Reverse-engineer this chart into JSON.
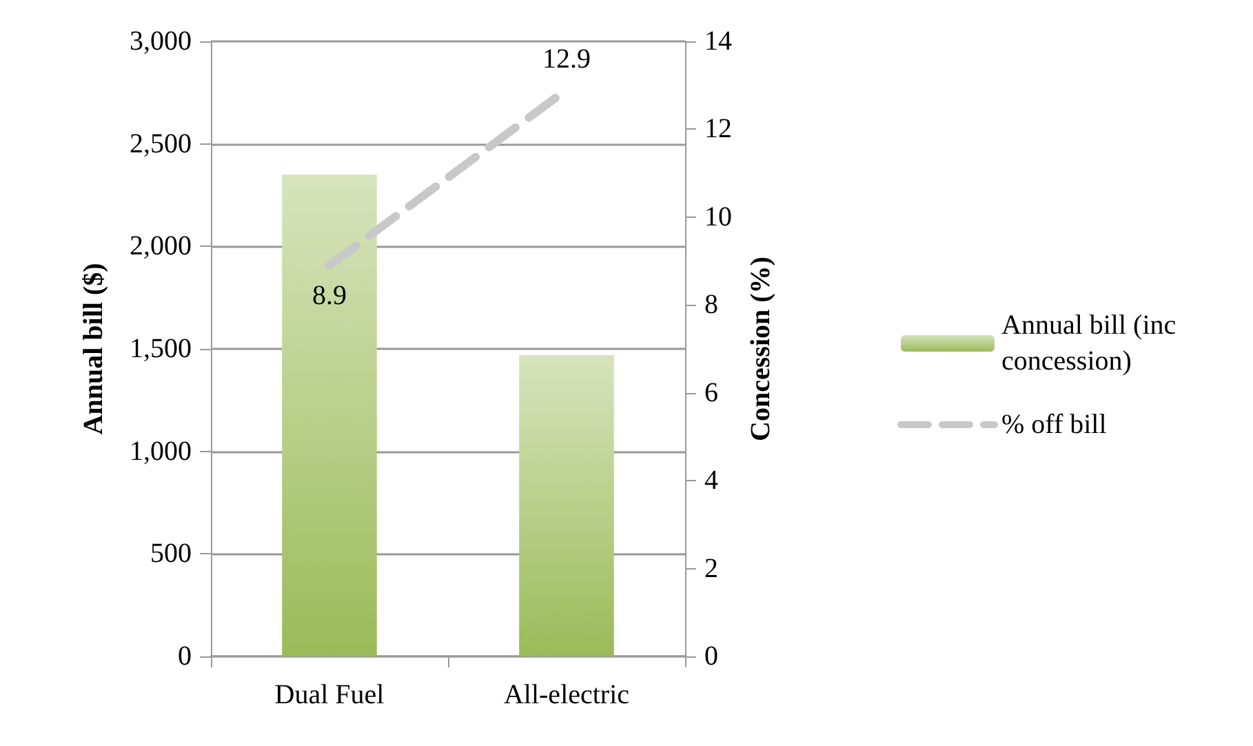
{
  "chart_data": {
    "type": "bar",
    "categories": [
      "Dual Fuel",
      "All-electric"
    ],
    "series": [
      {
        "name": "Annual bill (inc concession)",
        "color": "#9bbb59",
        "values": [
          2350,
          1470
        ]
      },
      {
        "name": "% off bill",
        "type": "line",
        "axis": "y2",
        "color": "#c8c8c8",
        "line_style": "dashed",
        "marker": "none",
        "values": [
          8.9,
          12.9
        ],
        "value_labels": [
          "8.9",
          "12.9"
        ]
      }
    ],
    "ylabel": "Annual bill ($)",
    "y2label": "Concession (%)",
    "ylim": [
      0,
      3000
    ],
    "yticks": [
      0,
      500,
      {
        "value": 1000,
        "label": "1,000"
      },
      {
        "value": 1500,
        "label": "1,500"
      },
      {
        "value": 2000,
        "label": "2,000"
      },
      {
        "value": 2500,
        "label": "2,500"
      },
      {
        "value": 3000,
        "label": "3,000"
      }
    ],
    "y2lim": [
      0,
      14
    ],
    "y2ticks": [
      0,
      2,
      4,
      6,
      8,
      10,
      12,
      14
    ],
    "grid": "y",
    "legend": "right"
  }
}
